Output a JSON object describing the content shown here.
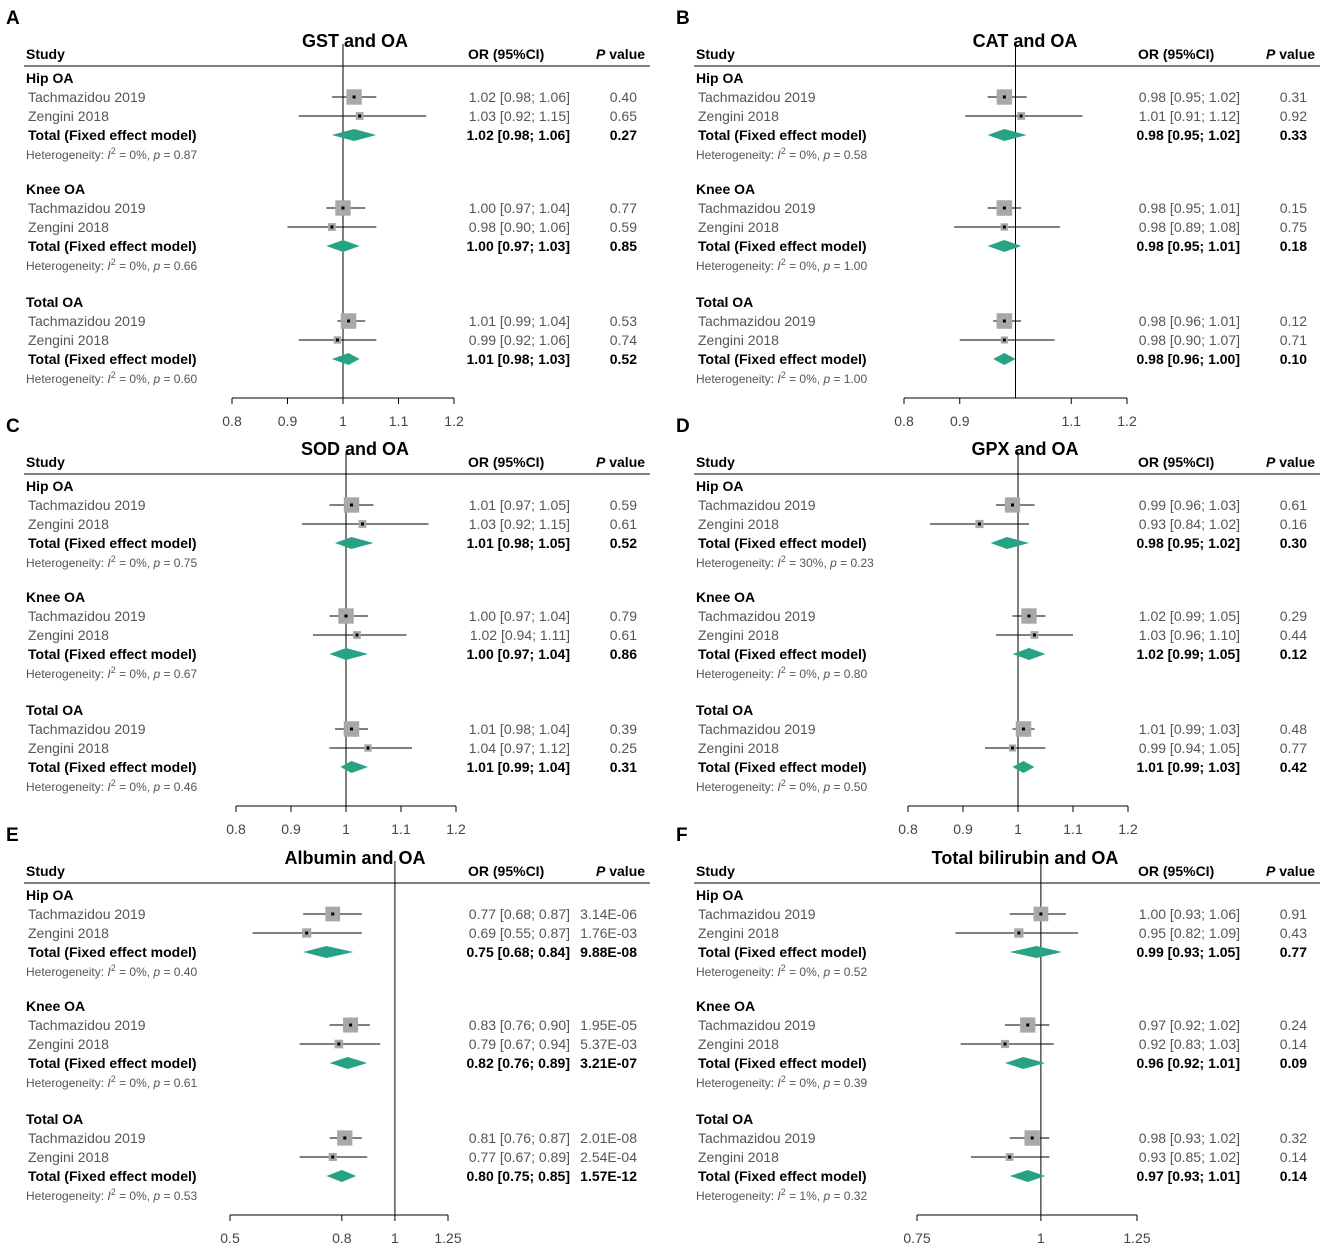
{
  "figure": {
    "background": "#ffffff"
  },
  "colors": {
    "diamond": "#26a284",
    "square": "#a8a8a8",
    "line": "#000000"
  },
  "headers": {
    "study": "Study",
    "or": "OR (95%CI)",
    "p_letter": "P",
    "p_rest": " value"
  },
  "chart_data": [
    {
      "type": "forest",
      "panel": "A",
      "title": "GST and OA",
      "xlim": [
        0.8,
        1.2
      ],
      "ticks": [
        "0.8",
        "0.9",
        "1",
        "1.1",
        "1.2"
      ],
      "tick_values": [
        0.8,
        0.9,
        1,
        1.1,
        1.2
      ],
      "null_value": 1,
      "groups": [
        {
          "name": "Hip OA",
          "studies": [
            {
              "study": "Tachmazidou 2019",
              "or": 1.02,
              "lo": 0.98,
              "hi": 1.06,
              "weight": 0.9,
              "ci_text": "1.02 [0.98; 1.06]",
              "p": "0.40"
            },
            {
              "study": "Zengini 2018",
              "or": 1.03,
              "lo": 0.92,
              "hi": 1.15,
              "weight": 0.1,
              "ci_text": "1.03 [0.92; 1.15]",
              "p": "0.65"
            }
          ],
          "total": {
            "label": "Total (Fixed effect model)",
            "or": 1.02,
            "lo": 0.98,
            "hi": 1.06,
            "ci_text": "1.02 [0.98; 1.06]",
            "p": "0.27"
          },
          "het": {
            "i2": "0%",
            "p": "0.87"
          }
        },
        {
          "name": "Knee OA",
          "studies": [
            {
              "study": "Tachmazidou 2019",
              "or": 1.0,
              "lo": 0.97,
              "hi": 1.04,
              "weight": 0.9,
              "ci_text": "1.00 [0.97; 1.04]",
              "p": "0.77"
            },
            {
              "study": "Zengini 2018",
              "or": 0.98,
              "lo": 0.9,
              "hi": 1.06,
              "weight": 0.1,
              "ci_text": "0.98 [0.90; 1.06]",
              "p": "0.59"
            }
          ],
          "total": {
            "label": "Total (Fixed effect model)",
            "or": 1.0,
            "lo": 0.97,
            "hi": 1.03,
            "ci_text": "1.00 [0.97; 1.03]",
            "p": "0.85"
          },
          "het": {
            "i2": "0%",
            "p": "0.66"
          }
        },
        {
          "name": "Total OA",
          "studies": [
            {
              "study": "Tachmazidou 2019",
              "or": 1.01,
              "lo": 0.99,
              "hi": 1.04,
              "weight": 0.92,
              "ci_text": "1.01 [0.99; 1.04]",
              "p": "0.53"
            },
            {
              "study": "Zengini 2018",
              "or": 0.99,
              "lo": 0.92,
              "hi": 1.06,
              "weight": 0.08,
              "ci_text": "0.99 [0.92; 1.06]",
              "p": "0.74"
            }
          ],
          "total": {
            "label": "Total (Fixed effect model)",
            "or": 1.01,
            "lo": 0.98,
            "hi": 1.03,
            "ci_text": "1.01 [0.98; 1.03]",
            "p": "0.52"
          },
          "het": {
            "i2": "0%",
            "p": "0.60"
          }
        }
      ]
    },
    {
      "type": "forest",
      "panel": "B",
      "title": "CAT and OA",
      "xlim": [
        0.8,
        1.2
      ],
      "ticks": [
        "0.8",
        "0.9",
        "1.1",
        "1.2"
      ],
      "tick_values": [
        0.8,
        0.9,
        1.1,
        1.2
      ],
      "null_value": 1,
      "groups": [
        {
          "name": "Hip OA",
          "studies": [
            {
              "study": "Tachmazidou 2019",
              "or": 0.98,
              "lo": 0.95,
              "hi": 1.02,
              "weight": 0.9,
              "ci_text": "0.98 [0.95; 1.02]",
              "p": "0.31"
            },
            {
              "study": "Zengini 2018",
              "or": 1.01,
              "lo": 0.91,
              "hi": 1.12,
              "weight": 0.1,
              "ci_text": "1.01 [0.91; 1.12]",
              "p": "0.92"
            }
          ],
          "total": {
            "label": "Total (Fixed effect model)",
            "or": 0.98,
            "lo": 0.95,
            "hi": 1.02,
            "ci_text": "0.98 [0.95; 1.02]",
            "p": "0.33"
          },
          "het": {
            "i2": "0%",
            "p": "0.58"
          }
        },
        {
          "name": "Knee OA",
          "studies": [
            {
              "study": "Tachmazidou 2019",
              "or": 0.98,
              "lo": 0.95,
              "hi": 1.01,
              "weight": 0.92,
              "ci_text": "0.98 [0.95; 1.01]",
              "p": "0.15"
            },
            {
              "study": "Zengini 2018",
              "or": 0.98,
              "lo": 0.89,
              "hi": 1.08,
              "weight": 0.08,
              "ci_text": "0.98 [0.89; 1.08]",
              "p": "0.75"
            }
          ],
          "total": {
            "label": "Total (Fixed effect model)",
            "or": 0.98,
            "lo": 0.95,
            "hi": 1.01,
            "ci_text": "0.98 [0.95; 1.01]",
            "p": "0.18"
          },
          "het": {
            "i2": "0%",
            "p": "1.00"
          }
        },
        {
          "name": "Total OA",
          "studies": [
            {
              "study": "Tachmazidou 2019",
              "or": 0.98,
              "lo": 0.96,
              "hi": 1.01,
              "weight": 0.93,
              "ci_text": "0.98 [0.96; 1.01]",
              "p": "0.12"
            },
            {
              "study": "Zengini 2018",
              "or": 0.98,
              "lo": 0.9,
              "hi": 1.07,
              "weight": 0.07,
              "ci_text": "0.98 [0.90; 1.07]",
              "p": "0.71"
            }
          ],
          "total": {
            "label": "Total (Fixed effect model)",
            "or": 0.98,
            "lo": 0.96,
            "hi": 1.0,
            "ci_text": "0.98 [0.96; 1.00]",
            "p": "0.10"
          },
          "het": {
            "i2": "0%",
            "p": "1.00"
          }
        }
      ]
    },
    {
      "type": "forest",
      "panel": "C",
      "title": "SOD and OA",
      "xlim": [
        0.8,
        1.2
      ],
      "ticks": [
        "0.8",
        "0.9",
        "1",
        "1.1",
        "1.2"
      ],
      "tick_values": [
        0.8,
        0.9,
        1,
        1.1,
        1.2
      ],
      "null_value": 1,
      "groups": [
        {
          "name": "Hip OA",
          "studies": [
            {
              "study": "Tachmazidou 2019",
              "or": 1.01,
              "lo": 0.97,
              "hi": 1.05,
              "weight": 0.9,
              "ci_text": "1.01 [0.97; 1.05]",
              "p": "0.59"
            },
            {
              "study": "Zengini 2018",
              "or": 1.03,
              "lo": 0.92,
              "hi": 1.15,
              "weight": 0.1,
              "ci_text": "1.03 [0.92; 1.15]",
              "p": "0.61"
            }
          ],
          "total": {
            "label": "Total (Fixed effect model)",
            "or": 1.01,
            "lo": 0.98,
            "hi": 1.05,
            "ci_text": "1.01 [0.98; 1.05]",
            "p": "0.52"
          },
          "het": {
            "i2": "0%",
            "p": "0.75"
          }
        },
        {
          "name": "Knee OA",
          "studies": [
            {
              "study": "Tachmazidou 2019",
              "or": 1.0,
              "lo": 0.97,
              "hi": 1.04,
              "weight": 0.9,
              "ci_text": "1.00 [0.97; 1.04]",
              "p": "0.79"
            },
            {
              "study": "Zengini 2018",
              "or": 1.02,
              "lo": 0.94,
              "hi": 1.11,
              "weight": 0.1,
              "ci_text": "1.02 [0.94; 1.11]",
              "p": "0.61"
            }
          ],
          "total": {
            "label": "Total (Fixed effect model)",
            "or": 1.0,
            "lo": 0.97,
            "hi": 1.04,
            "ci_text": "1.00 [0.97; 1.04]",
            "p": "0.86"
          },
          "het": {
            "i2": "0%",
            "p": "0.67"
          }
        },
        {
          "name": "Total OA",
          "studies": [
            {
              "study": "Tachmazidou 2019",
              "or": 1.01,
              "lo": 0.98,
              "hi": 1.04,
              "weight": 0.92,
              "ci_text": "1.01 [0.98; 1.04]",
              "p": "0.39"
            },
            {
              "study": "Zengini 2018",
              "or": 1.04,
              "lo": 0.97,
              "hi": 1.12,
              "weight": 0.08,
              "ci_text": "1.04 [0.97; 1.12]",
              "p": "0.25"
            }
          ],
          "total": {
            "label": "Total (Fixed effect model)",
            "or": 1.01,
            "lo": 0.99,
            "hi": 1.04,
            "ci_text": "1.01 [0.99; 1.04]",
            "p": "0.31"
          },
          "het": {
            "i2": "0%",
            "p": "0.46"
          }
        }
      ]
    },
    {
      "type": "forest",
      "panel": "D",
      "title": "GPX and OA",
      "xlim": [
        0.8,
        1.2
      ],
      "ticks": [
        "0.8",
        "0.9",
        "1",
        "1.1",
        "1.2"
      ],
      "tick_values": [
        0.8,
        0.9,
        1,
        1.1,
        1.2
      ],
      "null_value": 1,
      "groups": [
        {
          "name": "Hip OA",
          "studies": [
            {
              "study": "Tachmazidou 2019",
              "or": 0.99,
              "lo": 0.96,
              "hi": 1.03,
              "weight": 0.88,
              "ci_text": "0.99 [0.96; 1.03]",
              "p": "0.61"
            },
            {
              "study": "Zengini 2018",
              "or": 0.93,
              "lo": 0.84,
              "hi": 1.02,
              "weight": 0.12,
              "ci_text": "0.93 [0.84; 1.02]",
              "p": "0.16"
            }
          ],
          "total": {
            "label": "Total (Fixed effect model)",
            "or": 0.98,
            "lo": 0.95,
            "hi": 1.02,
            "ci_text": "0.98 [0.95; 1.02]",
            "p": "0.30"
          },
          "het": {
            "i2": "30%",
            "p": "0.23"
          }
        },
        {
          "name": "Knee OA",
          "studies": [
            {
              "study": "Tachmazidou 2019",
              "or": 1.02,
              "lo": 0.99,
              "hi": 1.05,
              "weight": 0.9,
              "ci_text": "1.02 [0.99; 1.05]",
              "p": "0.29"
            },
            {
              "study": "Zengini 2018",
              "or": 1.03,
              "lo": 0.96,
              "hi": 1.1,
              "weight": 0.1,
              "ci_text": "1.03 [0.96; 1.10]",
              "p": "0.44"
            }
          ],
          "total": {
            "label": "Total (Fixed effect model)",
            "or": 1.02,
            "lo": 0.99,
            "hi": 1.05,
            "ci_text": "1.02 [0.99; 1.05]",
            "p": "0.12"
          },
          "het": {
            "i2": "0%",
            "p": "0.80"
          }
        },
        {
          "name": "Total OA",
          "studies": [
            {
              "study": "Tachmazidou 2019",
              "or": 1.01,
              "lo": 0.99,
              "hi": 1.03,
              "weight": 0.93,
              "ci_text": "1.01 [0.99; 1.03]",
              "p": "0.48"
            },
            {
              "study": "Zengini 2018",
              "or": 0.99,
              "lo": 0.94,
              "hi": 1.05,
              "weight": 0.07,
              "ci_text": "0.99 [0.94; 1.05]",
              "p": "0.77"
            }
          ],
          "total": {
            "label": "Total (Fixed effect model)",
            "or": 1.01,
            "lo": 0.99,
            "hi": 1.03,
            "ci_text": "1.01 [0.99; 1.03]",
            "p": "0.42"
          },
          "het": {
            "i2": "0%",
            "p": "0.50"
          }
        }
      ]
    },
    {
      "type": "forest",
      "panel": "E",
      "title": "Albumin and OA",
      "xlim": [
        0.5,
        1.25
      ],
      "scale": "log",
      "ticks": [
        "0.5",
        "0.8",
        "1",
        "1.25"
      ],
      "tick_values": [
        0.5,
        0.8,
        1,
        1.25
      ],
      "null_value": 1,
      "groups": [
        {
          "name": "Hip OA",
          "studies": [
            {
              "study": "Tachmazidou 2019",
              "or": 0.77,
              "lo": 0.68,
              "hi": 0.87,
              "weight": 0.8,
              "ci_text": "0.77 [0.68; 0.87]",
              "p": "3.14E-06"
            },
            {
              "study": "Zengini 2018",
              "or": 0.69,
              "lo": 0.55,
              "hi": 0.87,
              "weight": 0.2,
              "ci_text": "0.69 [0.55; 0.87]",
              "p": "1.76E-03"
            }
          ],
          "total": {
            "label": "Total (Fixed effect model)",
            "or": 0.75,
            "lo": 0.68,
            "hi": 0.84,
            "ci_text": "0.75 [0.68; 0.84]",
            "p": "9.88E-08"
          },
          "het": {
            "i2": "0%",
            "p": "0.40"
          }
        },
        {
          "name": "Knee OA",
          "studies": [
            {
              "study": "Tachmazidou 2019",
              "or": 0.83,
              "lo": 0.76,
              "hi": 0.9,
              "weight": 0.85,
              "ci_text": "0.83 [0.76; 0.90]",
              "p": "1.95E-05"
            },
            {
              "study": "Zengini 2018",
              "or": 0.79,
              "lo": 0.67,
              "hi": 0.94,
              "weight": 0.15,
              "ci_text": "0.79 [0.67; 0.94]",
              "p": "5.37E-03"
            }
          ],
          "total": {
            "label": "Total (Fixed effect model)",
            "or": 0.82,
            "lo": 0.76,
            "hi": 0.89,
            "ci_text": "0.82 [0.76; 0.89]",
            "p": "3.21E-07"
          },
          "het": {
            "i2": "0%",
            "p": "0.61"
          }
        },
        {
          "name": "Total OA",
          "studies": [
            {
              "study": "Tachmazidou 2019",
              "or": 0.81,
              "lo": 0.76,
              "hi": 0.87,
              "weight": 0.88,
              "ci_text": "0.81 [0.76; 0.87]",
              "p": "2.01E-08"
            },
            {
              "study": "Zengini 2018",
              "or": 0.77,
              "lo": 0.67,
              "hi": 0.89,
              "weight": 0.12,
              "ci_text": "0.77 [0.67; 0.89]",
              "p": "2.54E-04"
            }
          ],
          "total": {
            "label": "Total (Fixed effect model)",
            "or": 0.8,
            "lo": 0.75,
            "hi": 0.85,
            "ci_text": "0.80 [0.75; 0.85]",
            "p": "1.57E-12"
          },
          "het": {
            "i2": "0%",
            "p": "0.53"
          }
        }
      ]
    },
    {
      "type": "forest",
      "panel": "F",
      "title": "Total bilirubin and OA",
      "xlim": [
        0.75,
        1.25
      ],
      "scale": "log",
      "ticks": [
        "0.75",
        "1",
        "1.25"
      ],
      "tick_values": [
        0.75,
        1,
        1.25
      ],
      "null_value": 1,
      "groups": [
        {
          "name": "Hip OA",
          "studies": [
            {
              "study": "Tachmazidou 2019",
              "or": 1.0,
              "lo": 0.93,
              "hi": 1.06,
              "weight": 0.8,
              "ci_text": "1.00 [0.93; 1.06]",
              "p": "0.91"
            },
            {
              "study": "Zengini 2018",
              "or": 0.95,
              "lo": 0.82,
              "hi": 1.09,
              "weight": 0.2,
              "ci_text": "0.95 [0.82; 1.09]",
              "p": "0.43"
            }
          ],
          "total": {
            "label": "Total (Fixed effect model)",
            "or": 0.99,
            "lo": 0.93,
            "hi": 1.05,
            "ci_text": "0.99 [0.93; 1.05]",
            "p": "0.77"
          },
          "het": {
            "i2": "0%",
            "p": "0.52"
          }
        },
        {
          "name": "Knee OA",
          "studies": [
            {
              "study": "Tachmazidou 2019",
              "or": 0.97,
              "lo": 0.92,
              "hi": 1.02,
              "weight": 0.88,
              "ci_text": "0.97 [0.92; 1.02]",
              "p": "0.24"
            },
            {
              "study": "Zengini 2018",
              "or": 0.92,
              "lo": 0.83,
              "hi": 1.03,
              "weight": 0.12,
              "ci_text": "0.92 [0.83; 1.03]",
              "p": "0.14"
            }
          ],
          "total": {
            "label": "Total (Fixed effect model)",
            "or": 0.96,
            "lo": 0.92,
            "hi": 1.01,
            "ci_text": "0.96 [0.92; 1.01]",
            "p": "0.09"
          },
          "het": {
            "i2": "0%",
            "p": "0.39"
          }
        },
        {
          "name": "Total OA",
          "studies": [
            {
              "study": "Tachmazidou 2019",
              "or": 0.98,
              "lo": 0.93,
              "hi": 1.02,
              "weight": 0.9,
              "ci_text": "0.98 [0.93; 1.02]",
              "p": "0.32"
            },
            {
              "study": "Zengini 2018",
              "or": 0.93,
              "lo": 0.85,
              "hi": 1.02,
              "weight": 0.1,
              "ci_text": "0.93 [0.85; 1.02]",
              "p": "0.14"
            }
          ],
          "total": {
            "label": "Total (Fixed effect model)",
            "or": 0.97,
            "lo": 0.93,
            "hi": 1.01,
            "ci_text": "0.97 [0.93; 1.01]",
            "p": "0.14"
          },
          "het": {
            "i2": "1%",
            "p": "0.32"
          }
        }
      ]
    }
  ]
}
